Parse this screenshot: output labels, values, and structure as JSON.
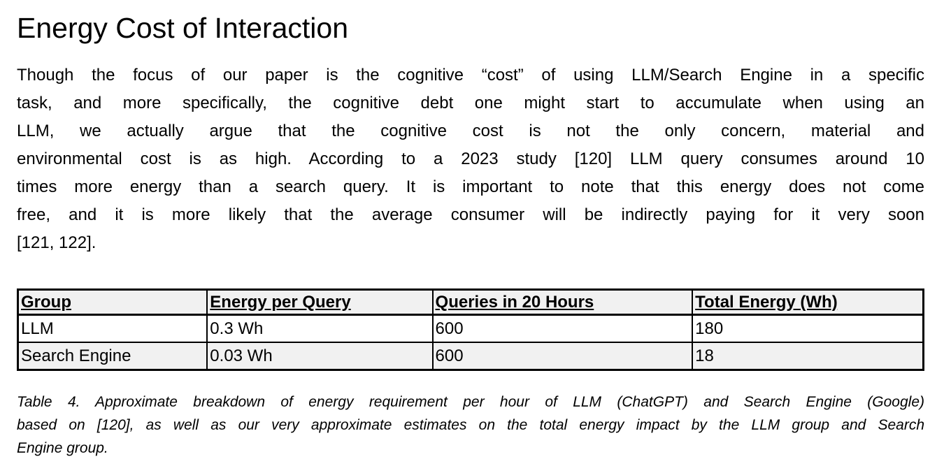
{
  "heading": "Energy Cost of Interaction",
  "paragraph": {
    "lines": [
      "Though the focus of our paper is the cognitive “cost” of using LLM/Search Engine in a specific",
      "task, and more specifically, the cognitive debt one might start to accumulate when using an",
      "LLM, we actually argue that the cognitive cost is not the only concern, material and",
      "environmental cost is as high. According to a 2023 study [120] LLM query consumes around 10",
      "times more energy than a search query. It is important to note that this energy does not come",
      "free, and it is more likely that the average consumer will be indirectly paying for it very soon",
      "[121, 122]."
    ]
  },
  "table": {
    "headers": [
      "Group",
      "Energy per Query",
      "Queries in 20 Hours",
      "Total Energy (Wh)"
    ],
    "rows": [
      [
        "LLM",
        "0.3 Wh",
        "600",
        "180"
      ],
      [
        "Search Engine",
        "0.03 Wh",
        "600",
        "18"
      ]
    ],
    "colors": {
      "header_bg": "#f1f1f1",
      "row_even_bg": "#ffffff",
      "row_odd_bg": "#f1f1f1",
      "border": "#000000"
    }
  },
  "caption": {
    "lines": [
      "Table 4. Approximate breakdown of energy requirement per hour of LLM (ChatGPT) and Search Engine (Google)",
      "based on [120], as well as our very approximate estimates on the total energy impact by the LLM group and Search",
      "Engine group."
    ]
  }
}
